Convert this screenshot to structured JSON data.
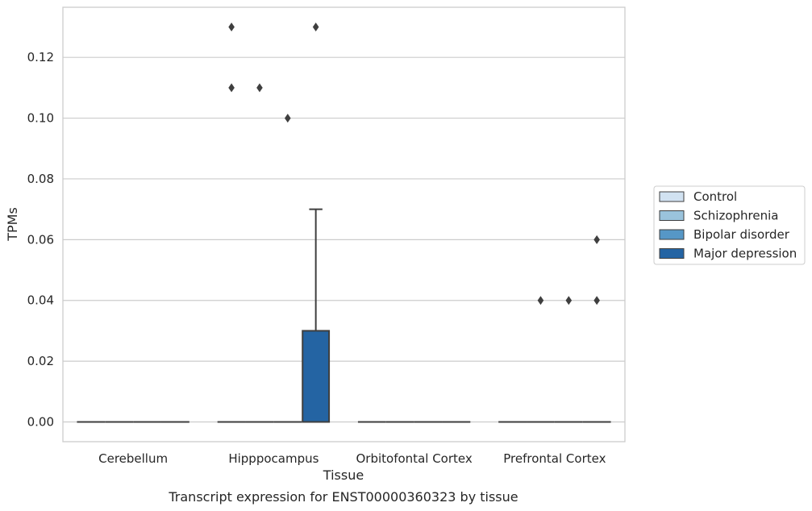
{
  "chart_data": {
    "type": "box",
    "title": "",
    "caption": "Transcript expression for ENST00000360323 by tissue",
    "xlabel": "Tissue",
    "ylabel": "TPMs",
    "ylim": [
      -0.0065,
      0.1365
    ],
    "yticks": [
      "0.00",
      "0.02",
      "0.04",
      "0.06",
      "0.08",
      "0.10",
      "0.12"
    ],
    "grid": "horizontal",
    "legend_position": "right",
    "categories": [
      "Cerebellum",
      "Hipppocampus",
      "Orbitofontal Cortex",
      "Prefrontal Cortex"
    ],
    "series": [
      {
        "name": "Control",
        "color": "#d1e2f1",
        "boxes": [
          {
            "category": "Cerebellum",
            "q1": 0,
            "median": 0,
            "q3": 0,
            "whisker_low": 0,
            "whisker_high": 0,
            "outliers": []
          },
          {
            "category": "Hipppocampus",
            "q1": 0,
            "median": 0,
            "q3": 0,
            "whisker_low": 0,
            "whisker_high": 0,
            "outliers": [
              0.11,
              0.13
            ]
          },
          {
            "category": "Orbitofontal Cortex",
            "q1": 0,
            "median": 0,
            "q3": 0,
            "whisker_low": 0,
            "whisker_high": 0,
            "outliers": []
          },
          {
            "category": "Prefrontal Cortex",
            "q1": 0,
            "median": 0,
            "q3": 0,
            "whisker_low": 0,
            "whisker_high": 0,
            "outliers": []
          }
        ]
      },
      {
        "name": "Schizophrenia",
        "color": "#9ac3dc",
        "boxes": [
          {
            "category": "Cerebellum",
            "q1": 0,
            "median": 0,
            "q3": 0,
            "whisker_low": 0,
            "whisker_high": 0,
            "outliers": []
          },
          {
            "category": "Hipppocampus",
            "q1": 0,
            "median": 0,
            "q3": 0,
            "whisker_low": 0,
            "whisker_high": 0,
            "outliers": [
              0.11
            ]
          },
          {
            "category": "Orbitofontal Cortex",
            "q1": 0,
            "median": 0,
            "q3": 0,
            "whisker_low": 0,
            "whisker_high": 0,
            "outliers": []
          },
          {
            "category": "Prefrontal Cortex",
            "q1": 0,
            "median": 0,
            "q3": 0,
            "whisker_low": 0,
            "whisker_high": 0,
            "outliers": [
              0.04
            ]
          }
        ]
      },
      {
        "name": "Bipolar disorder",
        "color": "#5697c6",
        "boxes": [
          {
            "category": "Cerebellum",
            "q1": 0,
            "median": 0,
            "q3": 0,
            "whisker_low": 0,
            "whisker_high": 0,
            "outliers": []
          },
          {
            "category": "Hipppocampus",
            "q1": 0,
            "median": 0,
            "q3": 0,
            "whisker_low": 0,
            "whisker_high": 0,
            "outliers": [
              0.1
            ]
          },
          {
            "category": "Orbitofontal Cortex",
            "q1": 0,
            "median": 0,
            "q3": 0,
            "whisker_low": 0,
            "whisker_high": 0,
            "outliers": []
          },
          {
            "category": "Prefrontal Cortex",
            "q1": 0,
            "median": 0,
            "q3": 0,
            "whisker_low": 0,
            "whisker_high": 0,
            "outliers": [
              0.04
            ]
          }
        ]
      },
      {
        "name": "Major depression",
        "color": "#2464a3",
        "boxes": [
          {
            "category": "Cerebellum",
            "q1": 0,
            "median": 0,
            "q3": 0,
            "whisker_low": 0,
            "whisker_high": 0,
            "outliers": []
          },
          {
            "category": "Hipppocampus",
            "q1": 0,
            "median": 0,
            "q3": 0.03,
            "whisker_low": 0,
            "whisker_high": 0.07,
            "outliers": [
              0.13
            ]
          },
          {
            "category": "Orbitofontal Cortex",
            "q1": 0,
            "median": 0,
            "q3": 0,
            "whisker_low": 0,
            "whisker_high": 0,
            "outliers": []
          },
          {
            "category": "Prefrontal Cortex",
            "q1": 0,
            "median": 0,
            "q3": 0,
            "whisker_low": 0,
            "whisker_high": 0,
            "outliers": [
              0.04,
              0.06
            ]
          }
        ]
      }
    ]
  }
}
